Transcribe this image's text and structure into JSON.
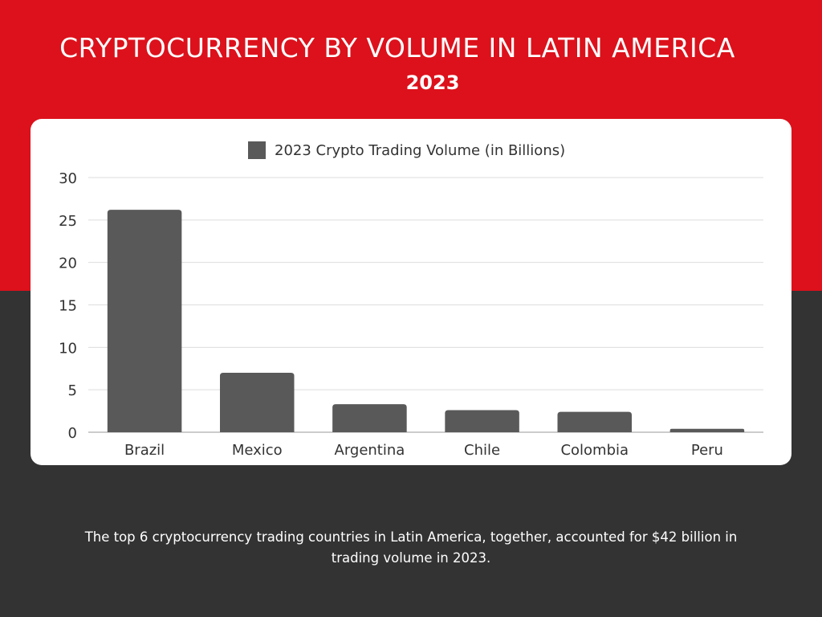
{
  "title": "CRYPTOCURRENCY BY VOLUME IN LATIN AMERICA",
  "subtitle": "2023",
  "footer": "The top 6 cryptocurrency trading countries in Latin America, together, accounted for $42 billion in trading volume in 2023.",
  "colors": {
    "background_top": "#dc111b",
    "background_bottom": "#333333",
    "bar": "#595959",
    "card": "#ffffff"
  },
  "chart_data": {
    "type": "bar",
    "categories": [
      "Brazil",
      "Mexico",
      "Argentina",
      "Chile",
      "Colombia",
      "Peru"
    ],
    "series": [
      {
        "name": "2023 Crypto Trading Volume (in Billions)",
        "values": [
          26.2,
          7.0,
          3.3,
          2.6,
          2.4,
          0.4
        ]
      }
    ],
    "ylim": [
      0,
      30
    ],
    "yticks": [
      0,
      5,
      10,
      15,
      20,
      25,
      30
    ],
    "grid": true,
    "legend": "top-center",
    "title": "",
    "xlabel": "",
    "ylabel": ""
  }
}
